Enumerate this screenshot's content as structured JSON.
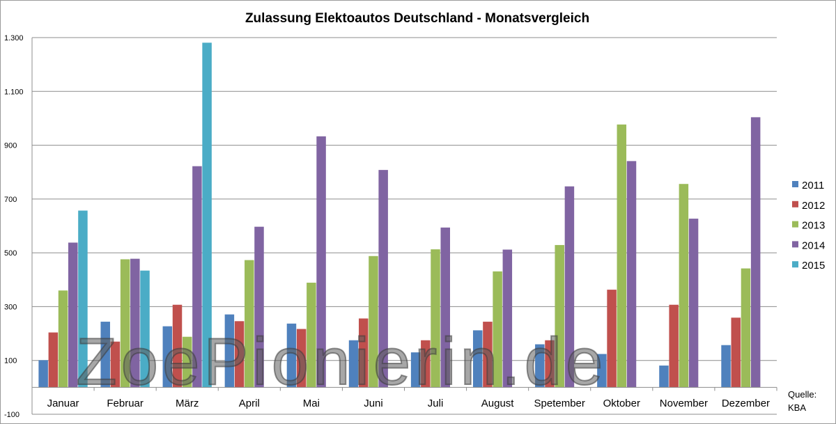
{
  "chart_data": {
    "type": "bar",
    "title": "Zulassung Elektoautos Deutschland - Monatsvergleich",
    "xlabel": "",
    "ylabel": "",
    "categories": [
      "Januar",
      "Februar",
      "März",
      "April",
      "Mai",
      "Juni",
      "Juli",
      "August",
      "Spetember",
      "Oktober",
      "November",
      "Dezember"
    ],
    "ylim": [
      -100,
      1300
    ],
    "yticks": [
      -100,
      100,
      300,
      500,
      700,
      900,
      1100,
      1300
    ],
    "ytick_labels": [
      "-100",
      "100",
      "300",
      "500",
      "700",
      "900",
      "1.100",
      "1.300"
    ],
    "grid": true,
    "legend_position": "right",
    "series": [
      {
        "name": "2011",
        "color": "#4F81BD",
        "values": [
          101,
          244,
          227,
          271,
          237,
          175,
          130,
          212,
          160,
          124,
          81,
          157
        ]
      },
      {
        "name": "2012",
        "color": "#C0504D",
        "values": [
          204,
          170,
          307,
          246,
          217,
          256,
          175,
          244,
          175,
          363,
          307,
          259
        ]
      },
      {
        "name": "2013",
        "color": "#9BBB59",
        "values": [
          360,
          476,
          188,
          473,
          389,
          488,
          513,
          431,
          529,
          977,
          756,
          442
        ]
      },
      {
        "name": "2014",
        "color": "#8064A2",
        "values": [
          538,
          478,
          822,
          597,
          933,
          808,
          594,
          512,
          747,
          841,
          627,
          1004
        ]
      },
      {
        "name": "2015",
        "color": "#4BACC6",
        "values": [
          657,
          434,
          1281,
          null,
          null,
          null,
          null,
          null,
          null,
          null,
          null,
          null
        ]
      }
    ],
    "source_note": [
      "Quelle:",
      "KBA"
    ],
    "watermark": "ZoePionierin.de"
  }
}
